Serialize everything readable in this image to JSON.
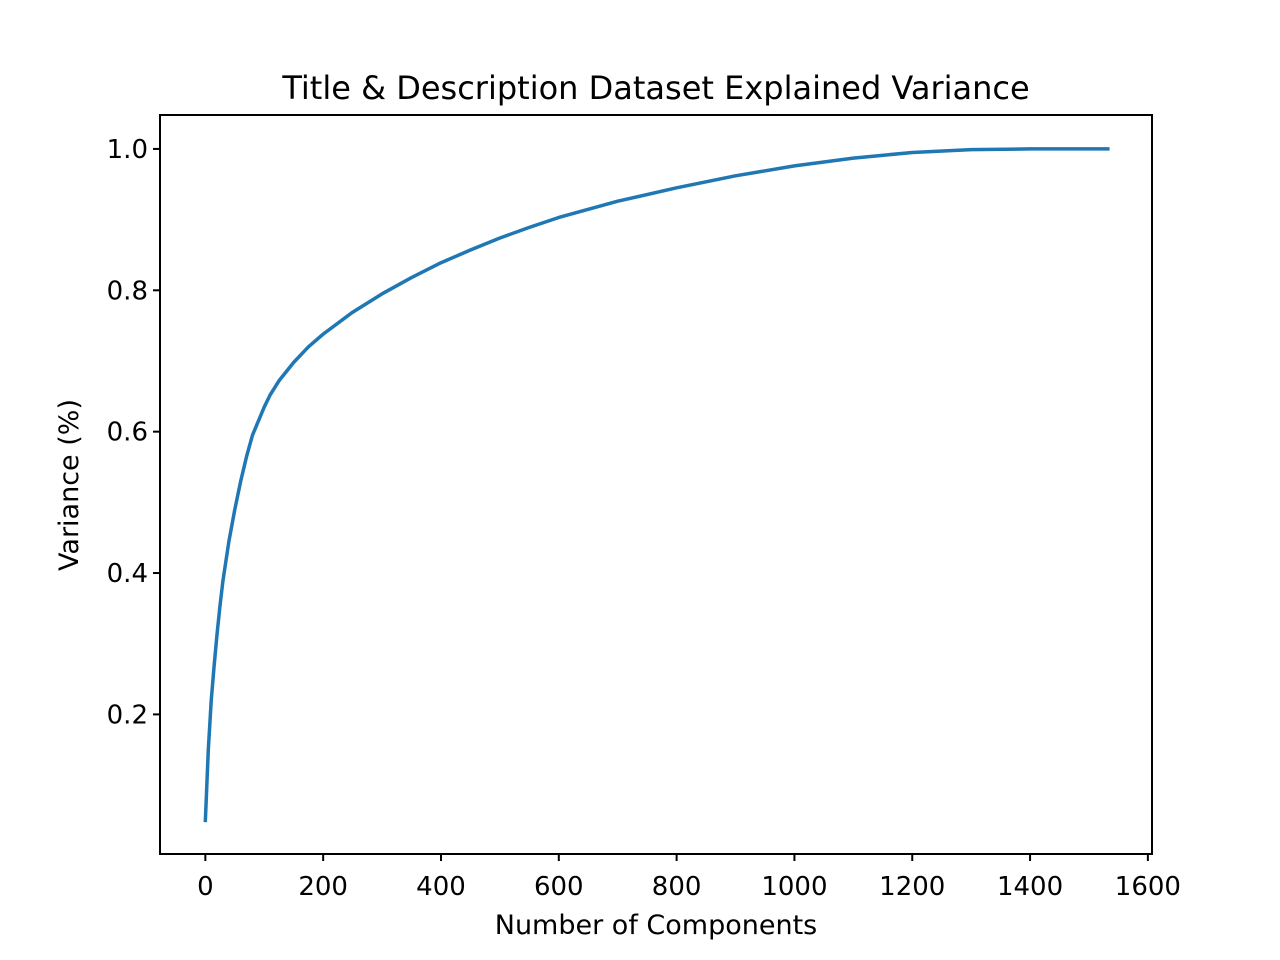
{
  "chart_data": {
    "type": "line",
    "title": "Title & Description Dataset Explained Variance",
    "xlabel": "Number of Components",
    "ylabel": "Variance (%)",
    "xlim": [
      -77,
      1607
    ],
    "ylim": [
      0.0025,
      1.048
    ],
    "xticks": [
      0,
      200,
      400,
      600,
      800,
      1000,
      1200,
      1400,
      1600
    ],
    "xtick_labels": [
      "0",
      "200",
      "400",
      "600",
      "800",
      "1000",
      "1200",
      "1400",
      "1600"
    ],
    "yticks": [
      0.2,
      0.4,
      0.6,
      0.8,
      1.0
    ],
    "ytick_labels": [
      "0.2",
      "0.4",
      "0.6",
      "0.8",
      "1.0"
    ],
    "grid": false,
    "series": [
      {
        "color": "#1f77b4",
        "x": [
          0,
          2,
          5,
          10,
          15,
          20,
          25,
          30,
          40,
          50,
          60,
          70,
          80,
          90,
          100,
          110,
          125,
          150,
          175,
          200,
          250,
          300,
          350,
          400,
          450,
          500,
          550,
          600,
          700,
          800,
          900,
          1000,
          1100,
          1200,
          1300,
          1400,
          1500,
          1532
        ],
        "y": [
          0.05,
          0.09,
          0.15,
          0.22,
          0.27,
          0.315,
          0.355,
          0.39,
          0.445,
          0.49,
          0.53,
          0.565,
          0.595,
          0.615,
          0.635,
          0.652,
          0.672,
          0.698,
          0.72,
          0.738,
          0.769,
          0.795,
          0.818,
          0.839,
          0.857,
          0.874,
          0.889,
          0.903,
          0.926,
          0.945,
          0.962,
          0.976,
          0.987,
          0.995,
          0.999,
          1.0,
          1.0,
          1.0
        ]
      }
    ]
  }
}
